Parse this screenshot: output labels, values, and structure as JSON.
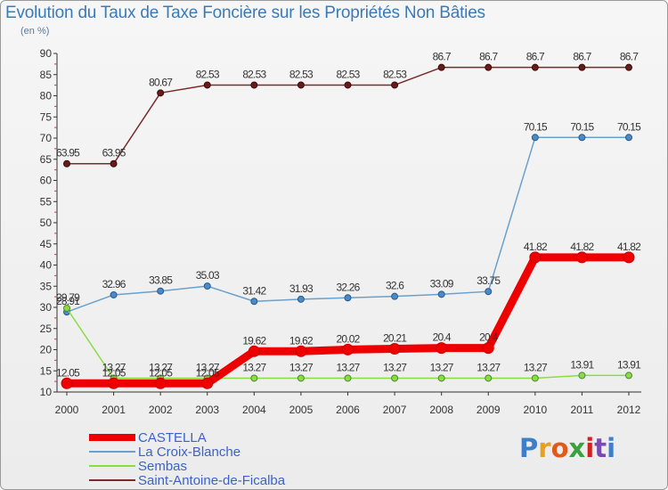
{
  "header": {
    "title": "Evolution du Taux de Taxe Foncière sur les Propriétés Non Bâties",
    "subtitle": "(en %)"
  },
  "logo": {
    "text": "Proxiti"
  },
  "chart_data": {
    "type": "line",
    "categories": [
      "2000",
      "2001",
      "2002",
      "2003",
      "2004",
      "2005",
      "2006",
      "2007",
      "2008",
      "2009",
      "2010",
      "2011",
      "2012"
    ],
    "ylim": [
      10,
      90
    ],
    "yticks": [
      "10",
      "15",
      "20",
      "25",
      "30",
      "35",
      "40",
      "45",
      "50",
      "55",
      "60",
      "65",
      "70",
      "75",
      "80",
      "85",
      "90"
    ],
    "grid": false,
    "legend_position": "bottom-left",
    "series": [
      {
        "name": "CASTELLA",
        "color": "#ee0000",
        "values": [
          12.05,
          12.05,
          12.05,
          12.05,
          19.62,
          19.62,
          20.02,
          20.21,
          20.4,
          20.4,
          41.82,
          41.82,
          41.82
        ],
        "labels": [
          "12.05",
          "12.05",
          "12.05",
          "12.05",
          "19.62",
          "19.62",
          "20.02",
          "20.21",
          "20.4",
          "20.4",
          "41.82",
          "41.82",
          "41.82"
        ]
      },
      {
        "name": "La Croix-Blanche",
        "color": "#6aa0cc",
        "values": [
          28.91,
          32.96,
          33.85,
          35.03,
          31.42,
          31.93,
          32.26,
          32.6,
          33.09,
          33.75,
          70.15,
          70.15,
          70.15
        ],
        "labels": [
          "28.91",
          "32.96",
          "33.85",
          "35.03",
          "31.42",
          "31.93",
          "32.26",
          "32.6",
          "33.09",
          "33.75",
          "70.15",
          "70.15",
          "70.15"
        ]
      },
      {
        "name": "Sembas",
        "color": "#88dd44",
        "values": [
          29.79,
          13.27,
          13.27,
          13.27,
          13.27,
          13.27,
          13.27,
          13.27,
          13.27,
          13.27,
          13.27,
          13.91,
          13.91
        ],
        "labels": [
          "29.79",
          "13.27",
          "13.27",
          "13.27",
          "13.27",
          "13.27",
          "13.27",
          "13.27",
          "13.27",
          "13.27",
          "13.27",
          "13.91",
          "13.91"
        ]
      },
      {
        "name": "Saint-Antoine-de-Ficalba",
        "color": "#7a2a2a",
        "values": [
          63.95,
          63.95,
          80.67,
          82.53,
          82.53,
          82.53,
          82.53,
          82.53,
          86.7,
          86.7,
          86.7,
          86.7,
          86.7
        ],
        "labels": [
          "63.95",
          "63.95",
          "80.67",
          "82.53",
          "82.53",
          "82.53",
          "82.53",
          "82.53",
          "86.7",
          "86.7",
          "86.7",
          "86.7",
          "86.7"
        ]
      }
    ]
  }
}
